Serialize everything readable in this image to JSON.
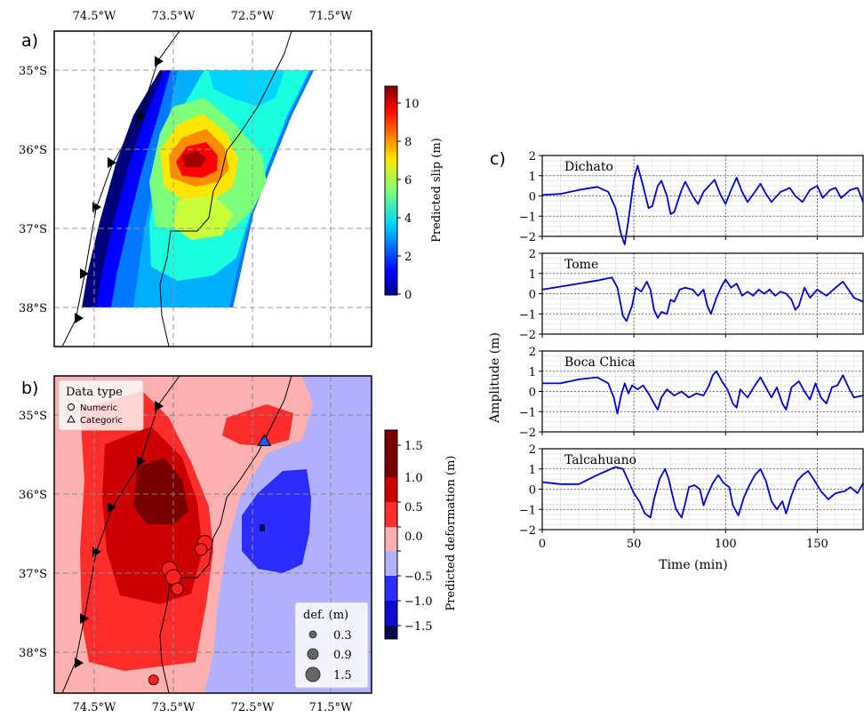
{
  "panels": {
    "a": "a)",
    "b": "b)",
    "c": "c)"
  },
  "map": {
    "lon_ticks": [
      "74.5°W",
      "73.5°W",
      "72.5°W",
      "71.5°W"
    ],
    "lat_ticks": [
      "35°S",
      "36°S",
      "37°S",
      "38°S"
    ]
  },
  "colorbar_a": {
    "label": "Predicted slip (m)",
    "ticks": [
      "0",
      "2",
      "4",
      "6",
      "8",
      "10"
    ],
    "colormap": "jet"
  },
  "colorbar_b": {
    "label": "Predicted deformation (m)",
    "ticks": [
      "−1.5",
      "−1.0",
      "−0.5",
      "0.0",
      "0.5",
      "1.0",
      "1.5"
    ],
    "colors": [
      "#0a0a4a",
      "#0a0ad0",
      "#2c2cff",
      "#b0b0fc",
      "#fcb0b0",
      "#ff2c2c",
      "#cc0000",
      "#7a0000"
    ]
  },
  "legend_datatype": {
    "title": "Data type",
    "items": [
      {
        "label": "Numeric",
        "marker": "circle"
      },
      {
        "label": "Categoric",
        "marker": "triangle"
      }
    ]
  },
  "legend_def": {
    "title": "def. (m)",
    "items": [
      "0.3",
      "0.9",
      "1.5"
    ]
  },
  "chart_data": {
    "type": "line",
    "xlabel": "Time (min)",
    "ylabel": "Amplitude (m)",
    "xlim": [
      0,
      175
    ],
    "ylim": [
      -2,
      2
    ],
    "x_ticks": [
      "0",
      "50",
      "100",
      "150"
    ],
    "y_ticks": [
      "2",
      "1",
      "0",
      "−1",
      "−2"
    ],
    "color": "#0000cc",
    "series": [
      {
        "name": "Dichato",
        "points": [
          [
            0,
            0.05
          ],
          [
            10,
            0.1
          ],
          [
            20,
            0.3
          ],
          [
            30,
            0.45
          ],
          [
            36,
            0.2
          ],
          [
            40,
            -0.6
          ],
          [
            43,
            -1.9
          ],
          [
            45,
            -2.4
          ],
          [
            47,
            -1.2
          ],
          [
            50,
            0.8
          ],
          [
            52,
            1.5
          ],
          [
            55,
            0.5
          ],
          [
            58,
            -0.6
          ],
          [
            60,
            -0.5
          ],
          [
            63,
            0.5
          ],
          [
            65,
            0.75
          ],
          [
            68,
            0
          ],
          [
            70,
            -0.9
          ],
          [
            72,
            -0.8
          ],
          [
            76,
            0.3
          ],
          [
            78,
            0.7
          ],
          [
            82,
            0
          ],
          [
            85,
            -0.4
          ],
          [
            88,
            0.2
          ],
          [
            92,
            0.6
          ],
          [
            94,
            0.8
          ],
          [
            97,
            0.1
          ],
          [
            100,
            -0.4
          ],
          [
            103,
            0.3
          ],
          [
            106,
            0.9
          ],
          [
            109,
            0.2
          ],
          [
            112,
            -0.3
          ],
          [
            116,
            0.2
          ],
          [
            119,
            0.6
          ],
          [
            122,
            0.1
          ],
          [
            125,
            -0.3
          ],
          [
            130,
            0.2
          ],
          [
            135,
            0.4
          ],
          [
            138,
            0
          ],
          [
            142,
            -0.3
          ],
          [
            146,
            0.3
          ],
          [
            150,
            0.5
          ],
          [
            153,
            -0.1
          ],
          [
            157,
            0.3
          ],
          [
            160,
            0.4
          ],
          [
            163,
            -0.1
          ],
          [
            168,
            0.3
          ],
          [
            172,
            0.4
          ],
          [
            175,
            -0.3
          ]
        ]
      },
      {
        "name": "Tome",
        "points": [
          [
            0,
            0.2
          ],
          [
            10,
            0.35
          ],
          [
            20,
            0.5
          ],
          [
            30,
            0.65
          ],
          [
            38,
            0.8
          ],
          [
            41,
            0.3
          ],
          [
            44,
            -1.1
          ],
          [
            46,
            -1.35
          ],
          [
            49,
            -0.6
          ],
          [
            51,
            0.3
          ],
          [
            54,
            0.1
          ],
          [
            57,
            0.6
          ],
          [
            59,
            0.2
          ],
          [
            61,
            -0.8
          ],
          [
            63,
            -1.2
          ],
          [
            65,
            -0.9
          ],
          [
            68,
            -1.0
          ],
          [
            70,
            -0.3
          ],
          [
            72,
            -0.4
          ],
          [
            75,
            0.2
          ],
          [
            78,
            0.3
          ],
          [
            82,
            0.2
          ],
          [
            85,
            -0.1
          ],
          [
            88,
            0.2
          ],
          [
            90,
            -0.6
          ],
          [
            92,
            -1.0
          ],
          [
            95,
            -0.2
          ],
          [
            98,
            0.4
          ],
          [
            100,
            0.7
          ],
          [
            103,
            0.3
          ],
          [
            106,
            0.5
          ],
          [
            109,
            -0.1
          ],
          [
            112,
            0.1
          ],
          [
            115,
            -0.1
          ],
          [
            118,
            0.2
          ],
          [
            121,
            0.0
          ],
          [
            124,
            0.2
          ],
          [
            127,
            -0.1
          ],
          [
            130,
            0.1
          ],
          [
            133,
            0.0
          ],
          [
            136,
            -0.3
          ],
          [
            138,
            -0.8
          ],
          [
            140,
            -0.6
          ],
          [
            143,
            0.3
          ],
          [
            146,
            -0.2
          ],
          [
            150,
            0.2
          ],
          [
            155,
            -0.1
          ],
          [
            160,
            0.3
          ],
          [
            164,
            0.6
          ],
          [
            167,
            0.2
          ],
          [
            170,
            -0.2
          ],
          [
            175,
            -0.4
          ]
        ]
      },
      {
        "name": "Boca Chica",
        "points": [
          [
            0,
            0.4
          ],
          [
            10,
            0.4
          ],
          [
            20,
            0.6
          ],
          [
            30,
            0.7
          ],
          [
            36,
            0.4
          ],
          [
            39,
            -0.3
          ],
          [
            41,
            -1.1
          ],
          [
            43,
            -0.2
          ],
          [
            45,
            0.4
          ],
          [
            47,
            -0.1
          ],
          [
            49,
            0.3
          ],
          [
            52,
            0.1
          ],
          [
            55,
            0.3
          ],
          [
            58,
            -0.1
          ],
          [
            61,
            -0.6
          ],
          [
            63,
            -0.9
          ],
          [
            65,
            -0.3
          ],
          [
            68,
            0.1
          ],
          [
            72,
            -0.2
          ],
          [
            76,
            0.0
          ],
          [
            80,
            -0.3
          ],
          [
            84,
            -0.1
          ],
          [
            88,
            -0.2
          ],
          [
            91,
            0.3
          ],
          [
            93,
            0.8
          ],
          [
            95,
            1.0
          ],
          [
            98,
            0.5
          ],
          [
            101,
            0.1
          ],
          [
            104,
            -0.6
          ],
          [
            106,
            -0.8
          ],
          [
            108,
            0.1
          ],
          [
            112,
            -0.3
          ],
          [
            116,
            0.3
          ],
          [
            119,
            0.7
          ],
          [
            122,
            0.2
          ],
          [
            125,
            -0.3
          ],
          [
            128,
            0.2
          ],
          [
            131,
            -0.6
          ],
          [
            133,
            -0.9
          ],
          [
            136,
            0.2
          ],
          [
            140,
            0.5
          ],
          [
            143,
            0.0
          ],
          [
            146,
            -0.4
          ],
          [
            149,
            0.4
          ],
          [
            152,
            -0.3
          ],
          [
            155,
            -0.6
          ],
          [
            158,
            0.2
          ],
          [
            161,
            0.3
          ],
          [
            164,
            0.8
          ],
          [
            167,
            0.2
          ],
          [
            170,
            -0.3
          ],
          [
            175,
            -0.2
          ]
        ]
      },
      {
        "name": "Talcahuano",
        "points": [
          [
            0,
            0.35
          ],
          [
            10,
            0.25
          ],
          [
            20,
            0.25
          ],
          [
            30,
            0.7
          ],
          [
            40,
            1.1
          ],
          [
            44,
            1.0
          ],
          [
            47,
            0.4
          ],
          [
            50,
            -0.2
          ],
          [
            53,
            -0.6
          ],
          [
            56,
            -1.2
          ],
          [
            59,
            -1.4
          ],
          [
            61,
            -0.5
          ],
          [
            64,
            0.5
          ],
          [
            67,
            1.0
          ],
          [
            69,
            0.5
          ],
          [
            71,
            -0.3
          ],
          [
            73,
            -1.0
          ],
          [
            76,
            -1.4
          ],
          [
            78,
            -0.7
          ],
          [
            80,
            0.1
          ],
          [
            83,
            0.2
          ],
          [
            86,
            0.0
          ],
          [
            88,
            -0.8
          ],
          [
            90,
            -0.3
          ],
          [
            93,
            0.3
          ],
          [
            96,
            0.7
          ],
          [
            99,
            0.3
          ],
          [
            102,
            0.1
          ],
          [
            104,
            -0.8
          ],
          [
            107,
            -1.3
          ],
          [
            110,
            -0.4
          ],
          [
            113,
            0.2
          ],
          [
            116,
            0.7
          ],
          [
            119,
            1.0
          ],
          [
            122,
            0.4
          ],
          [
            125,
            -0.6
          ],
          [
            128,
            -1.0
          ],
          [
            131,
            -0.6
          ],
          [
            133,
            -1.2
          ],
          [
            136,
            -0.3
          ],
          [
            139,
            0.4
          ],
          [
            142,
            0.7
          ],
          [
            145,
            0.9
          ],
          [
            148,
            0.5
          ],
          [
            152,
            -0.1
          ],
          [
            156,
            -0.5
          ],
          [
            160,
            -0.2
          ],
          [
            165,
            -0.1
          ],
          [
            168,
            0.1
          ],
          [
            172,
            -0.2
          ],
          [
            175,
            0.3
          ]
        ]
      }
    ]
  },
  "observations": {
    "numeric_points": [
      {
        "lon": -73.55,
        "lat": -36.95,
        "def": 1.5
      },
      {
        "lon": -73.5,
        "lat": -37.05,
        "def": 1.5
      },
      {
        "lon": -73.45,
        "lat": -37.2,
        "def": 0.9
      },
      {
        "lon": -73.1,
        "lat": -36.62,
        "def": 1.5
      },
      {
        "lon": -73.15,
        "lat": -36.7,
        "def": 0.9
      },
      {
        "lon": -73.75,
        "lat": -38.35,
        "def": 0.5
      }
    ],
    "categoric_points": [
      {
        "lon": -72.35,
        "lat": -35.33
      }
    ]
  }
}
